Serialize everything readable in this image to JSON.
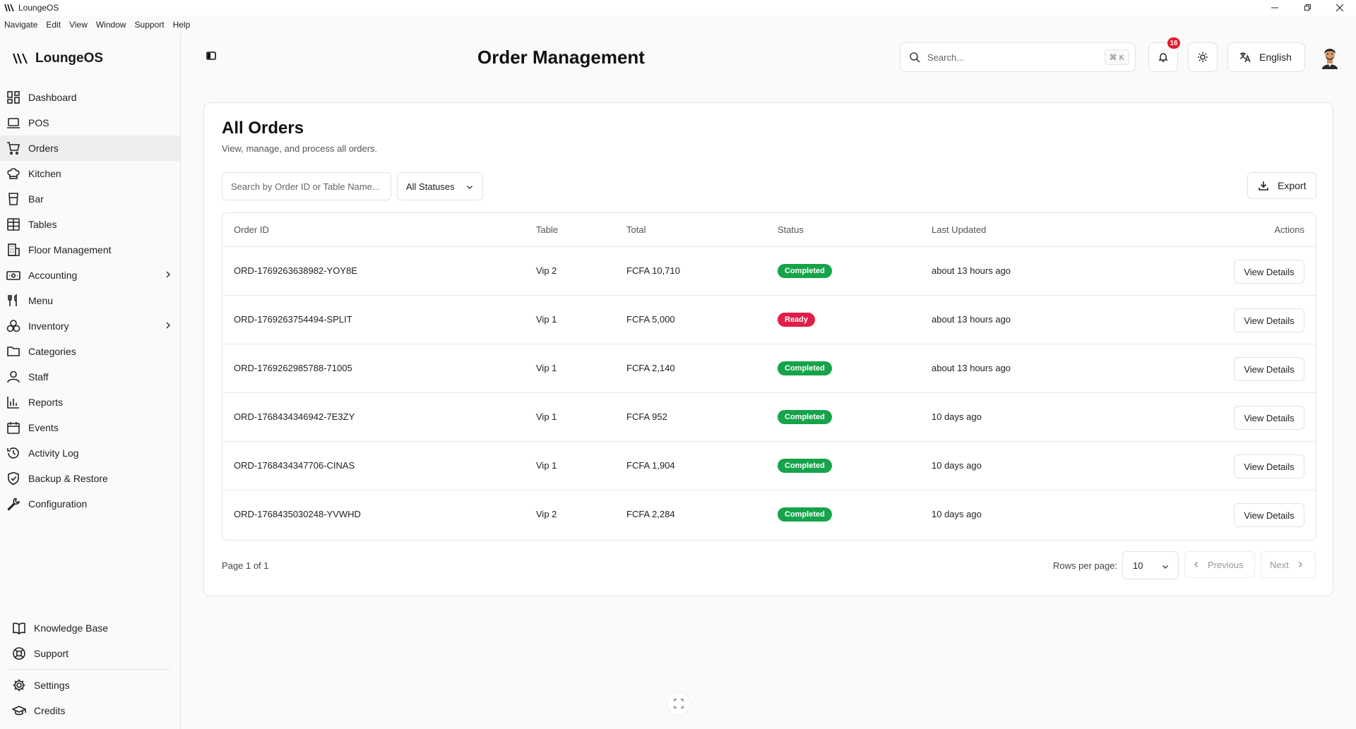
{
  "window": {
    "title": "LoungeOS"
  },
  "menubar": [
    "Navigate",
    "Edit",
    "View",
    "Window",
    "Support",
    "Help"
  ],
  "brand": {
    "name": "LoungeOS"
  },
  "sidebar": {
    "items": [
      {
        "label": "Dashboard",
        "icon": "dashboard-icon"
      },
      {
        "label": "POS",
        "icon": "laptop-icon"
      },
      {
        "label": "Orders",
        "icon": "cart-icon",
        "active": true
      },
      {
        "label": "Kitchen",
        "icon": "chef-hat-icon"
      },
      {
        "label": "Bar",
        "icon": "glass-icon"
      },
      {
        "label": "Tables",
        "icon": "table-grid-icon"
      },
      {
        "label": "Floor Management",
        "icon": "building-icon"
      },
      {
        "label": "Accounting",
        "icon": "banknote-icon",
        "expandable": true
      },
      {
        "label": "Menu",
        "icon": "utensils-icon"
      },
      {
        "label": "Inventory",
        "icon": "boxes-icon",
        "expandable": true
      },
      {
        "label": "Categories",
        "icon": "folder-icon"
      },
      {
        "label": "Staff",
        "icon": "user-icon"
      },
      {
        "label": "Reports",
        "icon": "bar-chart-icon"
      },
      {
        "label": "Events",
        "icon": "calendar-icon"
      },
      {
        "label": "Activity Log",
        "icon": "history-icon"
      },
      {
        "label": "Backup & Restore",
        "icon": "shield-check-icon"
      },
      {
        "label": "Configuration",
        "icon": "wrench-icon"
      }
    ],
    "bottom": [
      {
        "label": "Knowledge Base",
        "icon": "book-icon"
      },
      {
        "label": "Support",
        "icon": "lifebuoy-icon"
      },
      {
        "label": "Settings",
        "icon": "gear-icon"
      },
      {
        "label": "Credits",
        "icon": "graduation-cap-icon"
      }
    ]
  },
  "header": {
    "title": "Order Management",
    "search_placeholder": "Search...",
    "shortcut": "⌘ K",
    "notification_count": "16",
    "language": "English"
  },
  "orders": {
    "title": "All Orders",
    "subtitle": "View, manage, and process all orders.",
    "search_placeholder": "Search by Order ID or Table Name...",
    "status_filter": "All Statuses",
    "export_label": "Export",
    "columns": [
      "Order ID",
      "Table",
      "Total",
      "Status",
      "Last Updated",
      "Actions"
    ],
    "rows": [
      {
        "id": "ORD-1769263638982-YOY8E",
        "table": "Vip 2",
        "total": "FCFA 10,710",
        "status": "Completed",
        "updated": "about 13 hours ago",
        "action": "View Details"
      },
      {
        "id": "ORD-1769263754494-SPLIT",
        "table": "Vip 1",
        "total": "FCFA 5,000",
        "status": "Ready",
        "updated": "about 13 hours ago",
        "action": "View Details"
      },
      {
        "id": "ORD-1769262985788-71005",
        "table": "Vip 1",
        "total": "FCFA 2,140",
        "status": "Completed",
        "updated": "about 13 hours ago",
        "action": "View Details"
      },
      {
        "id": "ORD-1768434346942-7E3ZY",
        "table": "Vip 1",
        "total": "FCFA 952",
        "status": "Completed",
        "updated": "10 days ago",
        "action": "View Details"
      },
      {
        "id": "ORD-1768434347706-CINAS",
        "table": "Vip 1",
        "total": "FCFA 1,904",
        "status": "Completed",
        "updated": "10 days ago",
        "action": "View Details"
      },
      {
        "id": "ORD-1768435030248-YVWHD",
        "table": "Vip 2",
        "total": "FCFA 2,284",
        "status": "Completed",
        "updated": "10 days ago",
        "action": "View Details"
      }
    ],
    "pagination": {
      "page_info": "Page 1 of 1",
      "rows_label": "Rows per page:",
      "rows_value": "10",
      "previous": "Previous",
      "next": "Next"
    }
  },
  "colors": {
    "completed": "#16a34a",
    "ready": "#e11d48",
    "notification": "#e11d2e"
  }
}
